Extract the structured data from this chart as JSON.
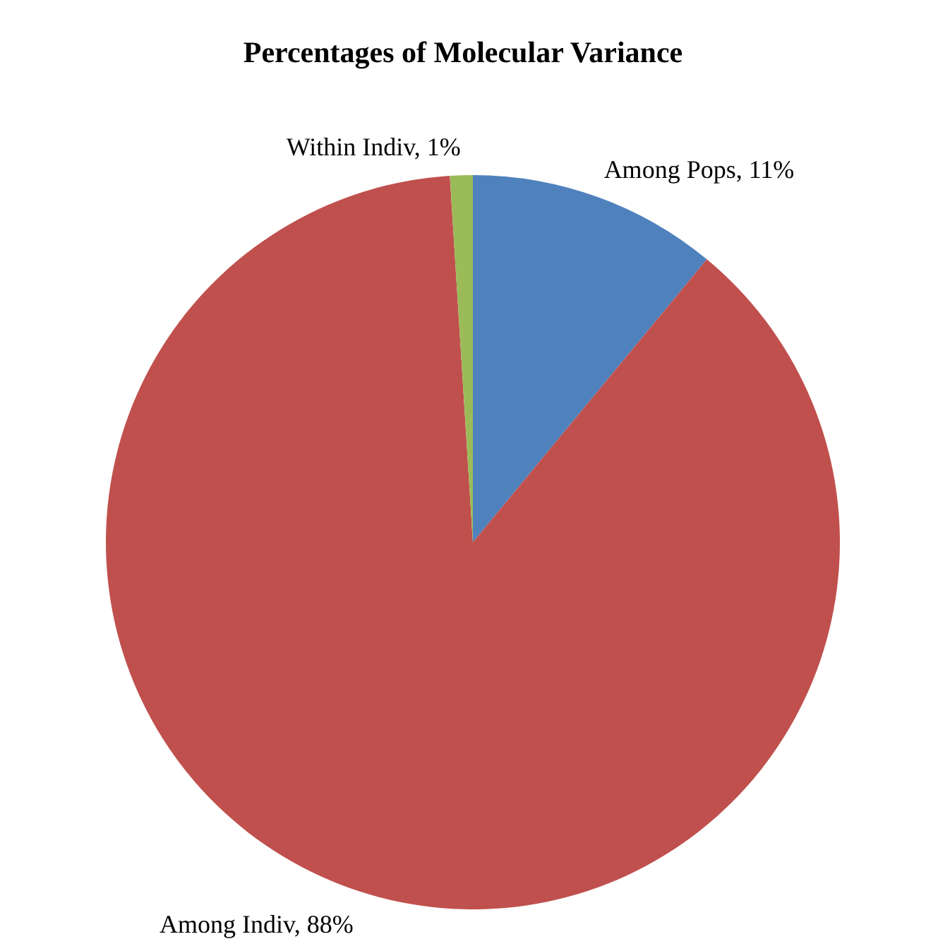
{
  "chart_data": {
    "type": "pie",
    "title": "Percentages of Molecular Variance",
    "categories": [
      "Among Pops",
      "Among Indiv",
      "Within Indiv"
    ],
    "values": [
      11,
      88,
      1
    ],
    "value_labels": [
      "11%",
      "88%",
      "1%"
    ],
    "colors": [
      "#4f81bd",
      "#c0504d",
      "#9bbb59"
    ],
    "legend": false
  }
}
